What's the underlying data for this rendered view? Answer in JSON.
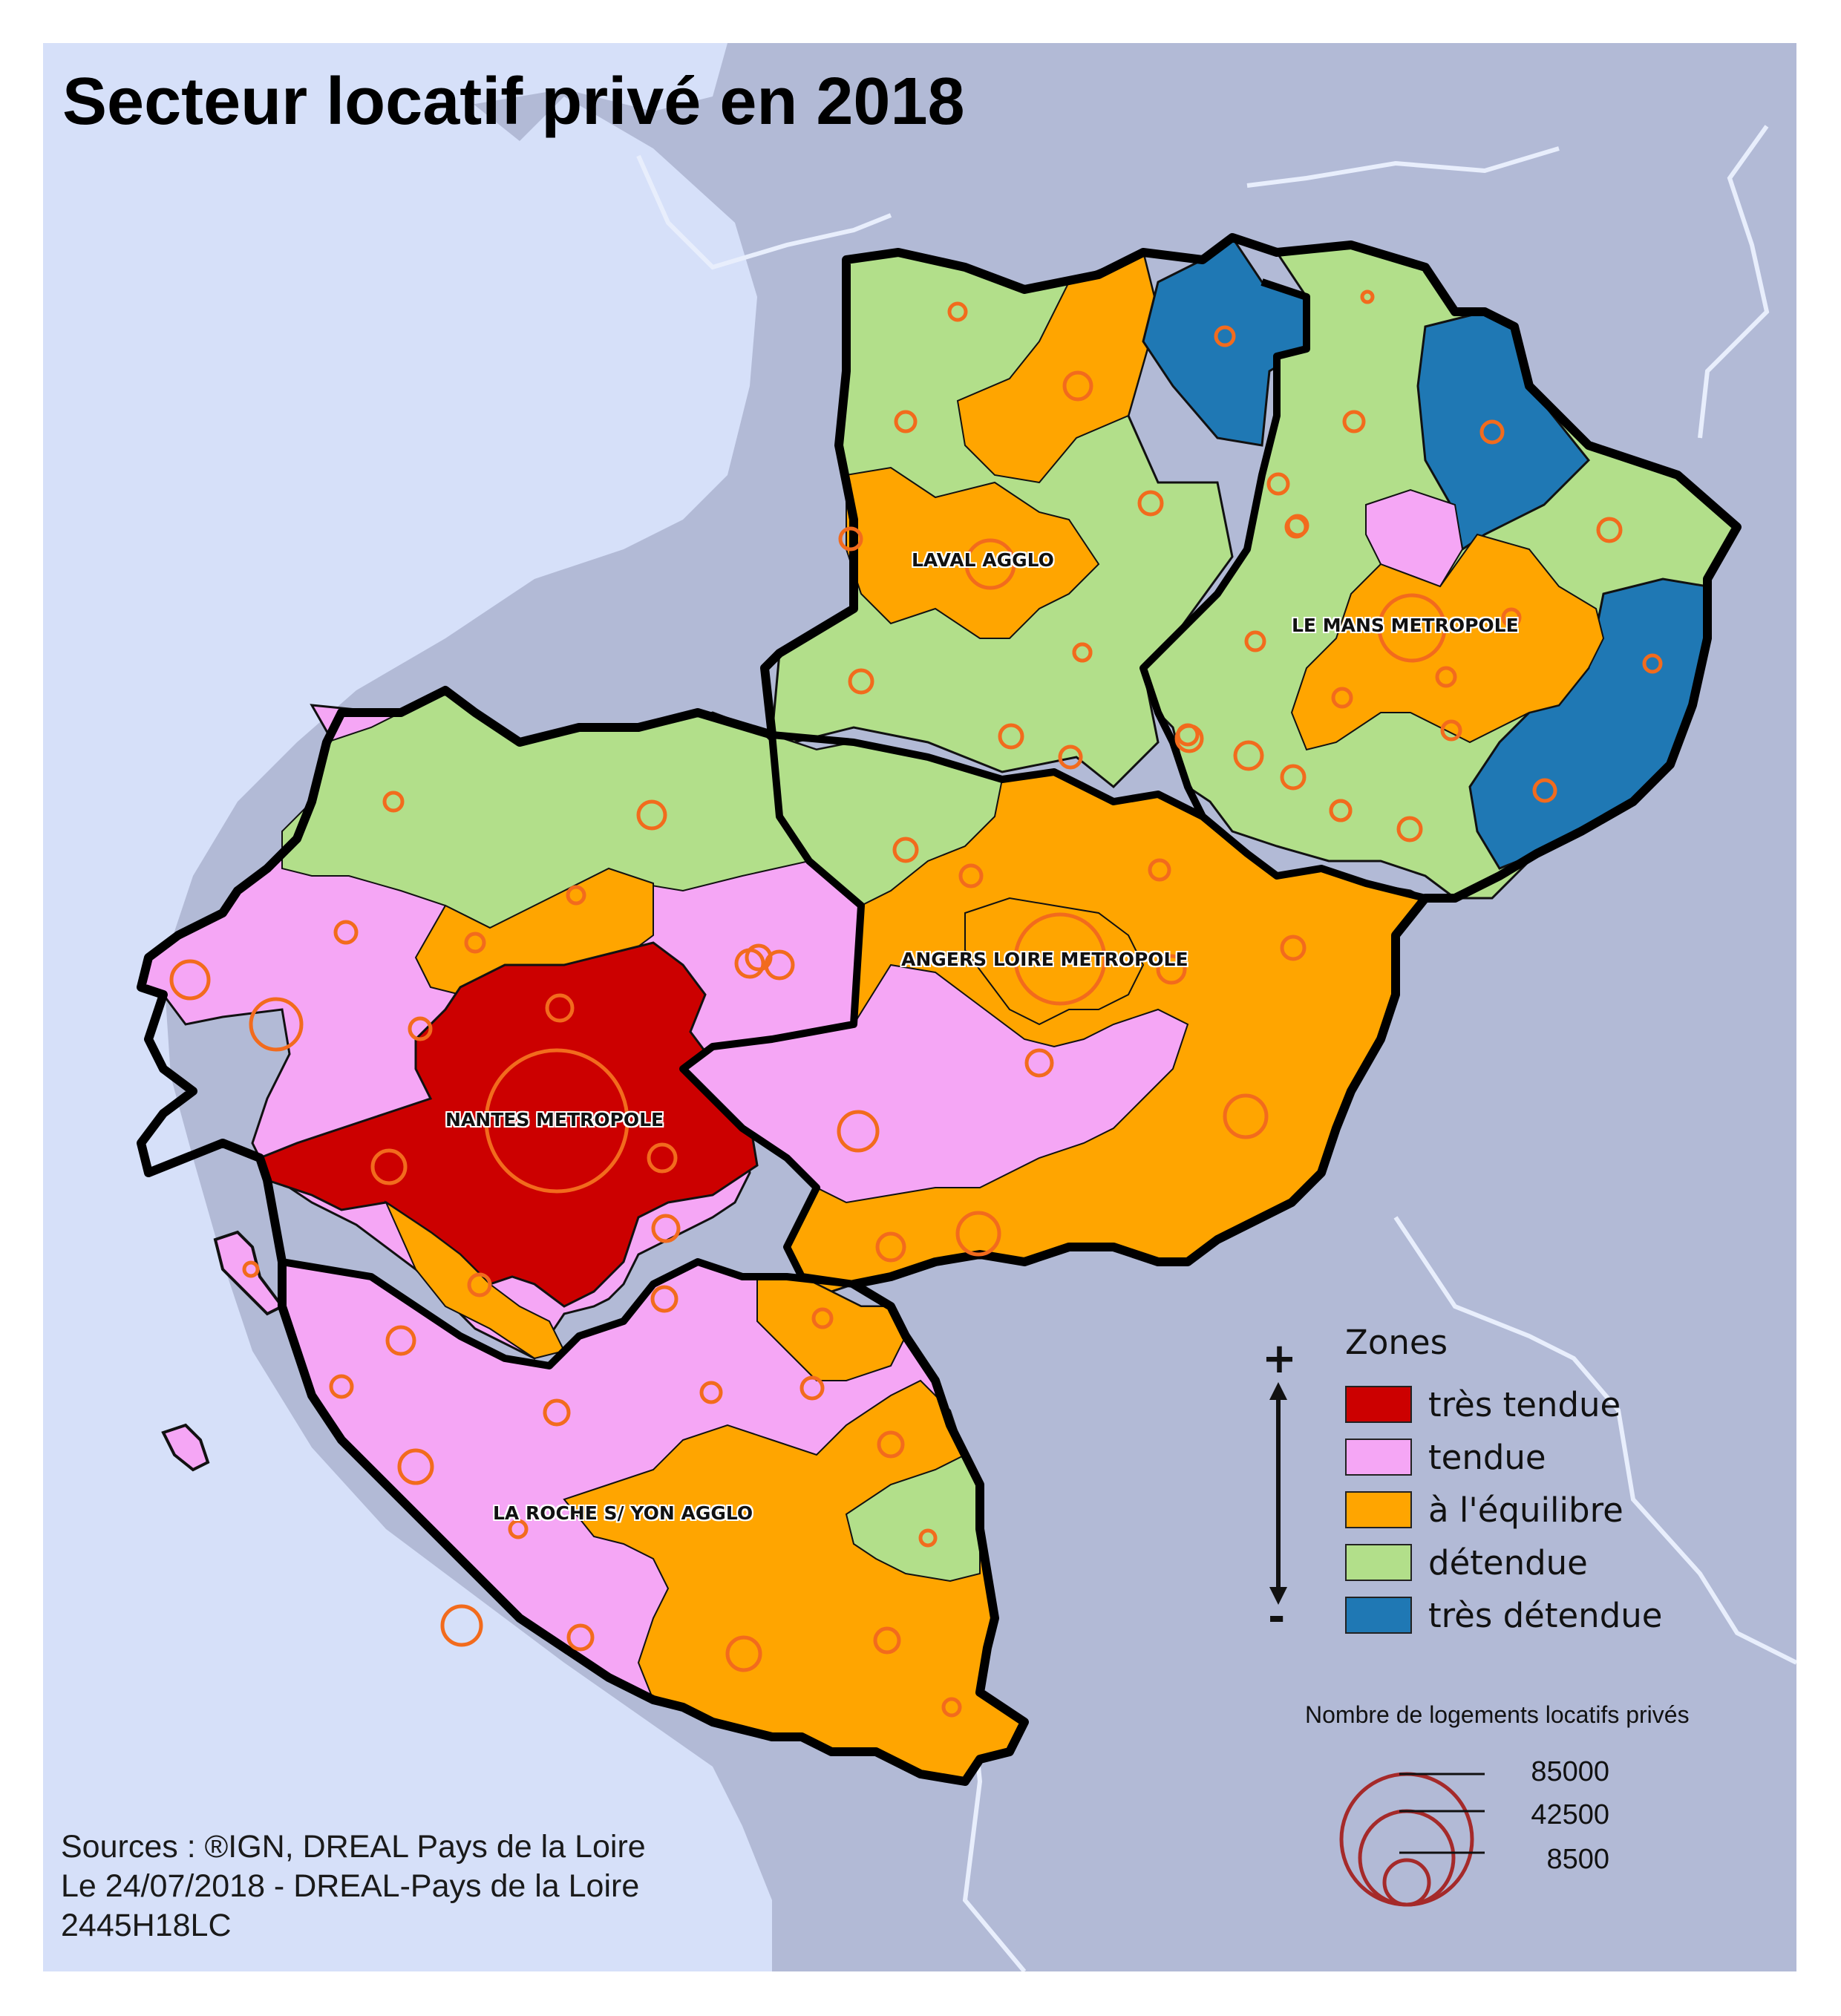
{
  "title": "Secteur locatif privé en 2018",
  "sources": {
    "line1": "Sources : ®IGN, DREAL Pays de la Loire",
    "line2": "Le 24/07/2018 - DREAL-Pays de la Loire",
    "line3": "2445H18LC"
  },
  "cities": {
    "laval": "LAVAL AGGLO",
    "le_mans": "LE MANS METROPOLE",
    "angers": "ANGERS LOIRE METROPOLE",
    "nantes": "NANTES METROPOLE",
    "la_roche": "LA ROCHE S/ YON AGGLO"
  },
  "legend": {
    "title": "Zones",
    "plus": "+",
    "minus": "-",
    "items": [
      {
        "label": "très tendue",
        "color": "#cc0000"
      },
      {
        "label": "tendue",
        "color": "#f5a6f5"
      },
      {
        "label": "à l'équilibre",
        "color": "#ffa500"
      },
      {
        "label": "détendue",
        "color": "#b2df8a"
      },
      {
        "label": "très détendue",
        "color": "#1f78b4"
      }
    ]
  },
  "proportional_legend": {
    "title": "Nombre de logements locatifs privés",
    "values": [
      "85000",
      "42500",
      "8500"
    ],
    "circle_color": "#a52a2a"
  },
  "colors": {
    "sea": "#d6e0f9",
    "neighbors": "#b2bad6",
    "circle_stroke": "#f26b1d"
  }
}
